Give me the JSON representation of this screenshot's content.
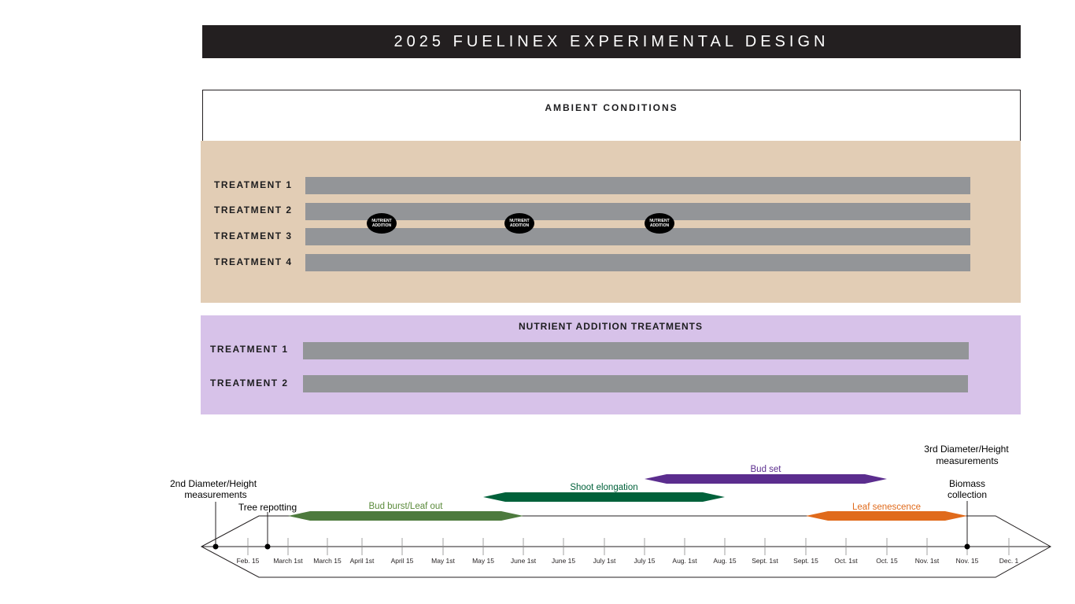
{
  "title": "2025 FUELINEX EXPERIMENTAL DESIGN",
  "ambient": {
    "label": "AMBIENT CONDITIONS",
    "treatments": [
      {
        "label": "TREATMENT 1"
      },
      {
        "label": "TREATMENT 2"
      },
      {
        "label": "TREATMENT 3"
      },
      {
        "label": "TREATMENT 4"
      }
    ],
    "nutrient_addition_markers": [
      {
        "line1": "NUTRIENT",
        "line2": "ADDITION"
      },
      {
        "line1": "NUTRIENT",
        "line2": "ADDITION"
      },
      {
        "line1": "NUTRIENT",
        "line2": "ADDITION"
      }
    ]
  },
  "nutrient": {
    "label": "NUTRIENT ADDITION TREATMENTS",
    "treatments": [
      {
        "label": "TREATMENT 1"
      },
      {
        "label": "TREATMENT 2"
      }
    ]
  },
  "timeline": {
    "ticks": [
      "Feb. 15",
      "March 1st",
      "March 15",
      "April 1st",
      "April 15",
      "May 1st",
      "May 15",
      "June 1st",
      "June 15",
      "July 1st",
      "July 15",
      "Aug. 1st",
      "Aug. 15",
      "Sept. 1st",
      "Sept. 15",
      "Oct. 1st",
      "Oct. 15",
      "Nov. 1st",
      "Nov. 15",
      "Dec. 1"
    ],
    "phases": [
      {
        "label": "Bud burst/Leaf out",
        "start": "March 1st",
        "end": "June 1st",
        "color": "#4d7a3d",
        "label_color": "#5a8a3a"
      },
      {
        "label": "Shoot elongation",
        "start": "May 15",
        "end": "Aug. 15",
        "color": "#00613a",
        "label_color": "#00613a"
      },
      {
        "label": "Bud set",
        "start": "July 15",
        "end": "Oct. 15",
        "color": "#5b2d8e",
        "label_color": "#5b2d8e"
      },
      {
        "label": "Leaf senescence",
        "start": "Sept. 15",
        "end": "Nov. 15",
        "color": "#e06a1b",
        "label_color": "#e06a1b"
      }
    ],
    "events": [
      {
        "lines": [
          "2nd Diameter/Height",
          "measurements"
        ]
      },
      {
        "lines": [
          "Tree repotting"
        ]
      },
      {
        "lines": [
          "3rd Diameter/Height",
          "measurements"
        ]
      },
      {
        "lines": [
          "Biomass",
          "collection"
        ]
      }
    ]
  }
}
